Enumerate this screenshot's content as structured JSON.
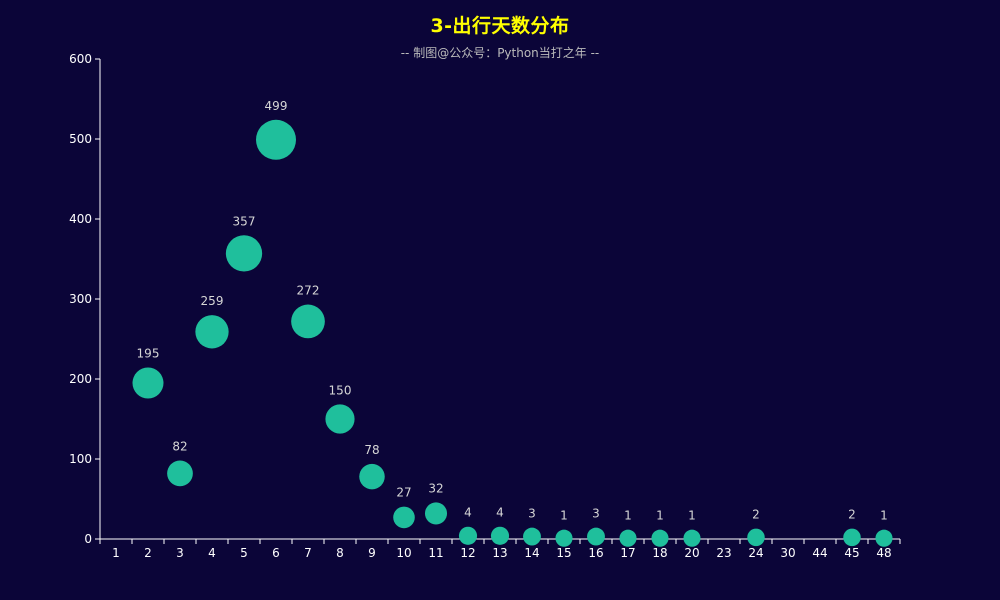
{
  "chart_data": {
    "type": "scatter",
    "title": "3-出行天数分布",
    "subtitle": "-- 制图@公众号：Python当打之年 --",
    "categories": [
      "1",
      "2",
      "3",
      "4",
      "5",
      "6",
      "7",
      "8",
      "9",
      "10",
      "11",
      "12",
      "13",
      "14",
      "15",
      "16",
      "17",
      "18",
      "20",
      "23",
      "24",
      "30",
      "44",
      "45",
      "48"
    ],
    "values": [
      null,
      195,
      82,
      259,
      357,
      499,
      272,
      150,
      78,
      27,
      32,
      4,
      4,
      3,
      1,
      3,
      1,
      1,
      1,
      null,
      2,
      null,
      null,
      2,
      1
    ],
    "ylim": [
      0,
      600
    ],
    "y_ticks": [
      0,
      100,
      200,
      300,
      400,
      500,
      600
    ],
    "xlabel": "",
    "ylabel": "",
    "grid": false,
    "colors": {
      "background": "#0b0538",
      "point": "#1fbf9c",
      "title": "#ffff00",
      "subtitle": "#bbbbbb",
      "axis": "#ffffff",
      "label": "#d6d6d6"
    }
  }
}
